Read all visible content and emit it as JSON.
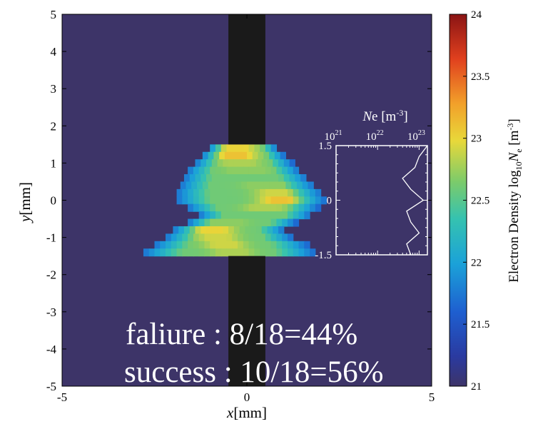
{
  "chart_data": {
    "type": "heatmap",
    "title": "",
    "xlabel": {
      "italic": "x",
      "rest": "[mm]"
    },
    "ylabel": {
      "italic": "y",
      "rest": "[mm]"
    },
    "xlim": [
      -5,
      5
    ],
    "ylim": [
      -5,
      5
    ],
    "xticks": [
      "-5",
      "0",
      "5"
    ],
    "yticks": [
      "5",
      "4",
      "3",
      "2",
      "1",
      "0",
      "-1",
      "-2",
      "-3",
      "-4",
      "-5"
    ],
    "background_value": 21,
    "electrode": {
      "x_range": [
        -0.5,
        0.5
      ],
      "color": "#1a1a1a",
      "gap_y_range": [
        -1.5,
        1.5
      ]
    },
    "grid_y_step": 0.2,
    "grid_x_step": 0.15,
    "rows": [
      {
        "y": 1.4,
        "x_range": [
          -1.0,
          0.8
        ],
        "peak_x": -0.3,
        "peak": 23.0
      },
      {
        "y": 1.2,
        "x_range": [
          -1.2,
          1.0
        ],
        "peak_x": -0.3,
        "peak": 23.1
      },
      {
        "y": 1.0,
        "x_range": [
          -1.4,
          1.2
        ],
        "peak_x": -0.2,
        "peak": 22.8
      },
      {
        "y": 0.8,
        "x_range": [
          -1.6,
          1.4
        ],
        "peak_x": 0.0,
        "peak": 22.7
      },
      {
        "y": 0.6,
        "x_range": [
          -1.7,
          1.6
        ],
        "peak_x": 0.3,
        "peak": 22.6
      },
      {
        "y": 0.4,
        "x_range": [
          -1.8,
          1.8
        ],
        "peak_x": 0.5,
        "peak": 22.7
      },
      {
        "y": 0.2,
        "x_range": [
          -1.9,
          2.0
        ],
        "peak_x": 0.8,
        "peak": 22.9
      },
      {
        "y": 0.0,
        "x_range": [
          -1.9,
          2.1
        ],
        "peak_x": 0.9,
        "peak": 23.1
      },
      {
        "y": -0.2,
        "x_range": [
          -1.6,
          1.9
        ],
        "peak_x": 0.5,
        "peak": 22.8
      },
      {
        "y": -0.4,
        "x_range": [
          -1.3,
          1.7
        ],
        "peak_x": 0.2,
        "peak": 22.6
      },
      {
        "y": -0.6,
        "x_range": [
          -1.6,
          1.3
        ],
        "peak_x": -0.6,
        "peak": 22.7
      },
      {
        "y": -0.8,
        "x_range": [
          -2.0,
          1.0
        ],
        "peak_x": -0.9,
        "peak": 23.0
      },
      {
        "y": -1.0,
        "x_range": [
          -2.2,
          1.2
        ],
        "peak_x": -0.8,
        "peak": 22.9
      },
      {
        "y": -1.2,
        "x_range": [
          -2.5,
          1.6
        ],
        "peak_x": -0.6,
        "peak": 22.9
      },
      {
        "y": -1.4,
        "x_range": [
          -2.8,
          1.8
        ],
        "peak_x": -0.4,
        "peak": 22.8
      }
    ],
    "colorbar": {
      "label_main": "Electron Density log",
      "label_sub": "10",
      "label_italic": "N",
      "label_sub2": "e",
      "label_unit": " [m",
      "label_sup": "-3",
      "label_close": "]",
      "range": [
        21,
        24
      ],
      "ticks": [
        "24",
        "23.5",
        "23",
        "22.5",
        "22",
        "21.5",
        "21"
      ]
    },
    "inset": {
      "title_italic": "N",
      "title_rest": "e [m",
      "title_sup": "-3",
      "title_close": "]",
      "xscale": "log",
      "xlim_exp": [
        21,
        23.2
      ],
      "xticks": [
        {
          "base": "10",
          "exp": "21"
        },
        {
          "base": "10",
          "exp": "22"
        },
        {
          "base": "10",
          "exp": "23"
        }
      ],
      "yticks": [
        "1.5",
        "0",
        "-1.5"
      ],
      "ylim": [
        -1.5,
        1.5
      ],
      "profile_y": [
        1.5,
        1.2,
        0.9,
        0.6,
        0.3,
        0.0,
        -0.3,
        -0.6,
        -0.9,
        -1.2,
        -1.5
      ],
      "profile_log": [
        23.2,
        23.0,
        22.9,
        22.6,
        22.8,
        23.1,
        22.7,
        22.8,
        23.0,
        22.7,
        22.8
      ]
    },
    "annotations": [
      {
        "text": "faliure : 8/18=44%"
      },
      {
        "text": "success : 10/18=56%"
      }
    ]
  }
}
